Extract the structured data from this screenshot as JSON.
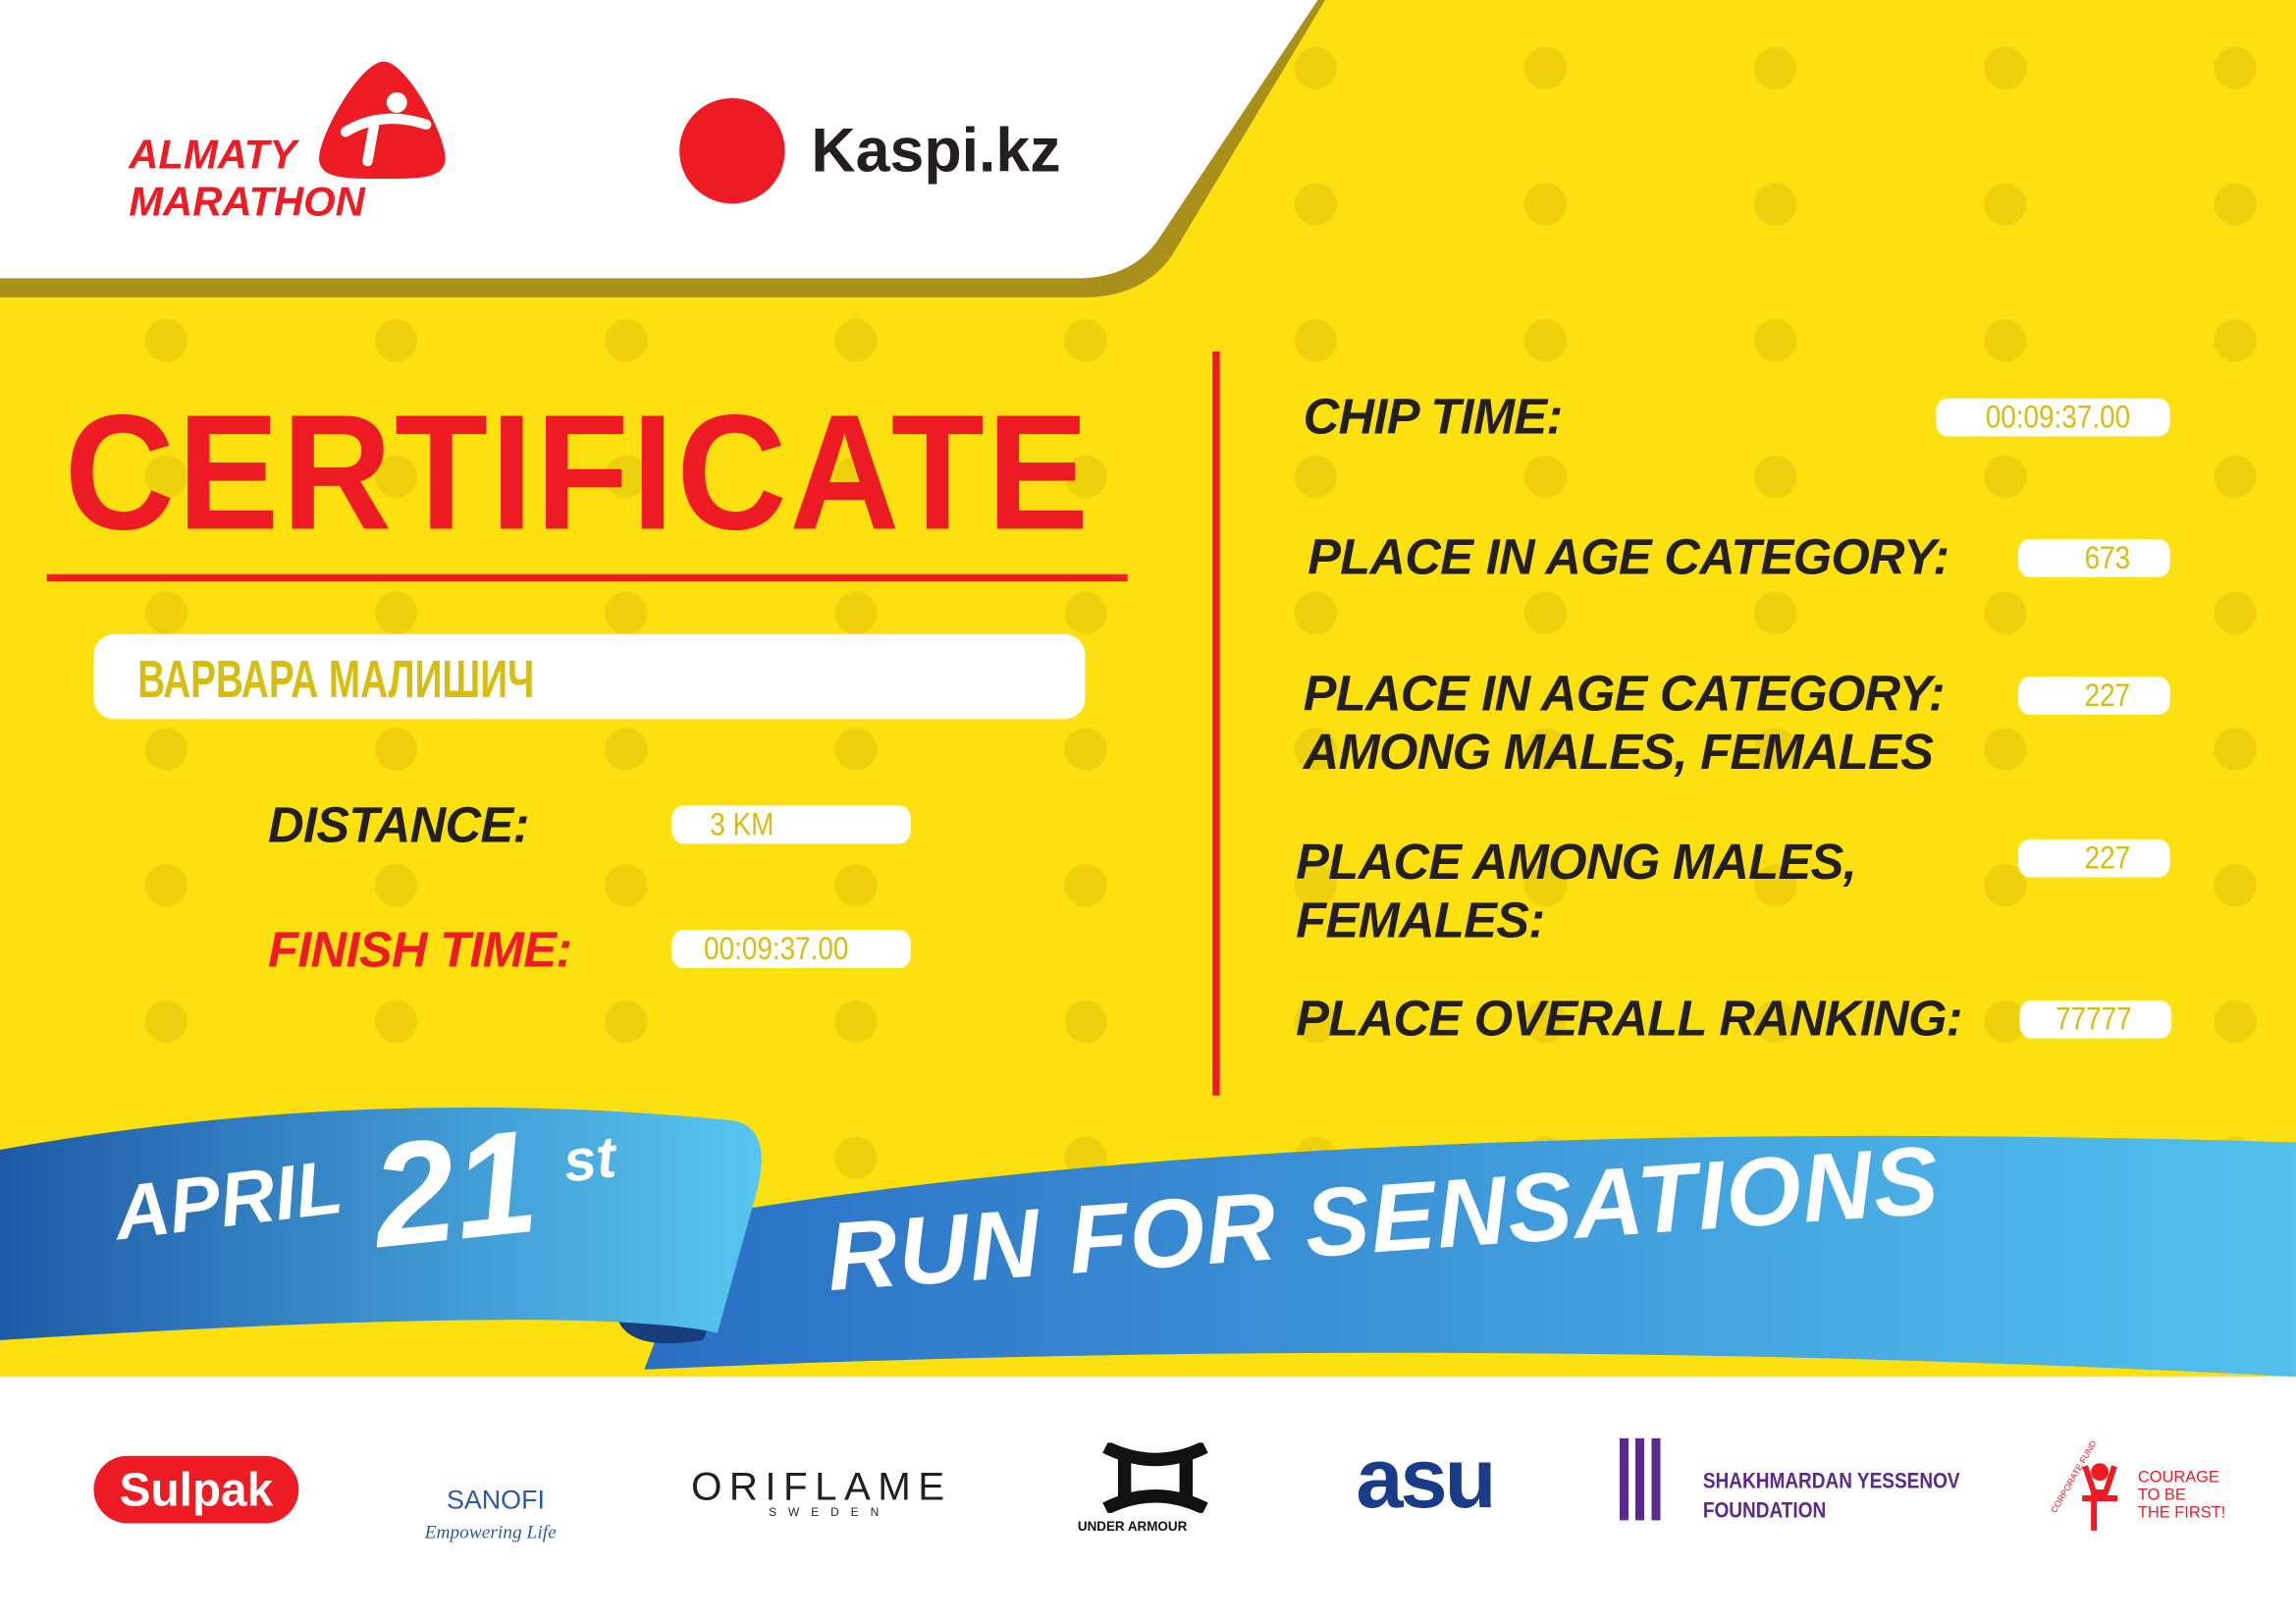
{
  "header": {
    "event_logo": "ALMATY MARATHON",
    "sponsor_logo": "Kaspi.kz"
  },
  "certificate": {
    "title": "CERTIFICATE",
    "participant_name": "ВАРВАРА МАЛИШИЧ",
    "distance_label": "DISTANCE:",
    "distance_value": "3 KM",
    "finish_time_label": "FINISH TIME:",
    "finish_time_value": "00:09:37.00",
    "chip_time_label": "CHIP TIME:",
    "chip_time_value": "00:09:37.00",
    "age_category_label": "PLACE IN AGE CATEGORY:",
    "age_category_value": "673",
    "age_category_gender_label_1": "PLACE IN AGE CATEGORY:",
    "age_category_gender_label_2": "AMONG MALES, FEMALES",
    "age_category_gender_value": "227",
    "gender_label_1": "PLACE AMONG MALES,",
    "gender_label_2": "FEMALES:",
    "gender_value": "227",
    "overall_label": "PLACE OVERALL RANKING:",
    "overall_value": "77777"
  },
  "banner": {
    "month": "APRIL",
    "day": "21",
    "suffix": "st",
    "slogan": "RUN FOR SENSATIONS"
  },
  "sponsors": [
    {
      "name": "Sulpak"
    },
    {
      "name": "SANOFI",
      "tagline": "Empowering Life"
    },
    {
      "name": "ORIFLAME",
      "tagline": "SWEDEN"
    },
    {
      "name": "UNDER ARMOUR"
    },
    {
      "name": "asu"
    },
    {
      "name": "SHAKHMARDAN YESSENOV",
      "tagline": "FOUNDATION"
    },
    {
      "name": "COURAGE",
      "line2": "TO BE",
      "line3": "THE FIRST!",
      "arc": "CORPORATE FUND"
    }
  ],
  "colors": {
    "yellow": "#fde00f",
    "red": "#ed1c24",
    "blue": "#2d7fd0",
    "dark": "#231f20"
  }
}
